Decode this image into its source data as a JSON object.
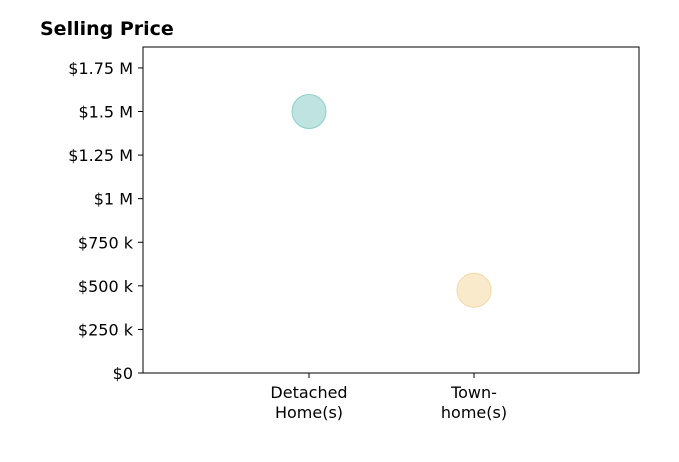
{
  "chart_data": {
    "type": "scatter",
    "title": "Selling Price",
    "xlabel": "",
    "ylabel": "",
    "categories": [
      [
        "Detached",
        "Home(s)"
      ],
      [
        "Town-",
        "home(s)"
      ]
    ],
    "values": [
      1500000,
      475000
    ],
    "point_colors": [
      "#a8dad6",
      "#f7e3bb"
    ],
    "point_edge_colors": [
      "#8fcfc9",
      "#f2d8a8"
    ],
    "ylim": [
      0,
      1870000
    ],
    "y_ticks": [
      {
        "value": 0,
        "label": "$0"
      },
      {
        "value": 250000,
        "label": "$250 k"
      },
      {
        "value": 500000,
        "label": "$500 k"
      },
      {
        "value": 750000,
        "label": "$750 k"
      },
      {
        "value": 1000000,
        "label": "$1 M"
      },
      {
        "value": 1250000,
        "label": "$1.25 M"
      },
      {
        "value": 1500000,
        "label": "$1.5 M"
      },
      {
        "value": 1750000,
        "label": "$1.75 M"
      }
    ],
    "grid": false,
    "legend": "none"
  }
}
